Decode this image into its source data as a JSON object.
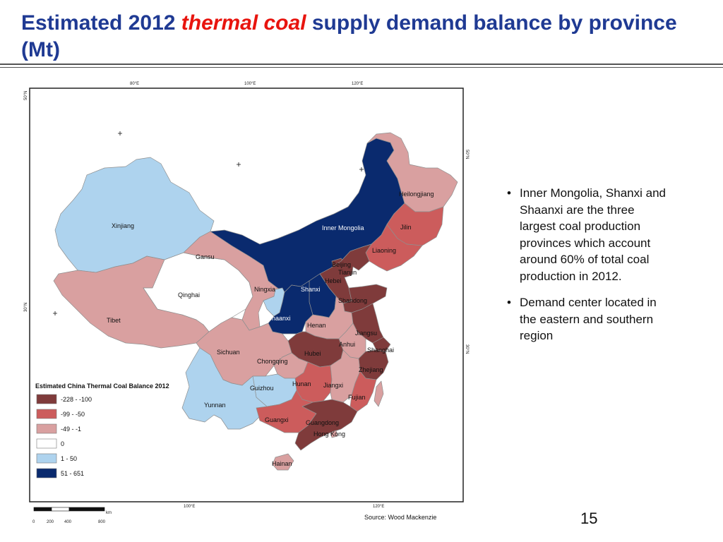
{
  "title": {
    "part1": "Estimated 2012 ",
    "highlight": "thermal coal",
    "part2": " supply demand balance by province (Mt)"
  },
  "colors": {
    "title": "#1f3a93",
    "highlight": "#e8140e",
    "c1": "#7f3b3b",
    "c2": "#cc5c5c",
    "c3": "#d9a0a0",
    "c4": "#ffffff",
    "c5": "#aed3ee",
    "c6": "#0a2a6e"
  },
  "map": {
    "axis_top": [
      "80°E",
      "100°E",
      "120°E"
    ],
    "axis_bottom": [
      "100°E",
      "120°E"
    ],
    "axis_left": [
      "50°N",
      "30°N"
    ],
    "axis_right": [
      "50°N",
      "30°N"
    ],
    "source": "Source: Wood Mackenzie",
    "scale": {
      "unit": "km",
      "ticks": [
        "0",
        "200",
        "400",
        "800"
      ]
    },
    "legend": {
      "title": "Estimated China Thermal Coal Balance 2012",
      "items": [
        {
          "label": "-228 - -100",
          "color": "#7f3b3b"
        },
        {
          "label": "-99 - -50",
          "color": "#cc5c5c"
        },
        {
          "label": "-49 - -1",
          "color": "#d9a0a0"
        },
        {
          "label": "0",
          "color": "#ffffff"
        },
        {
          "label": "1 - 50",
          "color": "#aed3ee"
        },
        {
          "label": "51 - 651",
          "color": "#0a2a6e"
        }
      ]
    },
    "provinces": {
      "xinjiang": "Xinjiang",
      "tibet": "Tibet",
      "qinghai": "Qinghai",
      "gansu": "Gansu",
      "inner_mongolia": "Inner Mongolia",
      "heilongjiang": "Heilongjiang",
      "jilin": "Jilin",
      "liaoning": "Liaoning",
      "beijing": "Beijing",
      "tianjin": "Tianjin",
      "hebei": "Hebei",
      "ningxia": "Ningxia",
      "shanxi": "Shanxi",
      "shaanxi": "Shaanxi",
      "shandong": "Shandong",
      "henan": "Henan",
      "jiangsu": "Jiangsu",
      "anhui": "Anhui",
      "shanghai": "Shanghai",
      "hubei": "Hubei",
      "sichuan": "Sichuan",
      "chongqing": "Chongqing",
      "zhejiang": "Zhejiang",
      "hunan": "Hunan",
      "jiangxi": "Jiangxi",
      "guizhou": "Guizhou",
      "fujian": "Fujian",
      "yunnan": "Yunnan",
      "guangxi": "Guangxi",
      "guangdong": "Guangdong",
      "hong_kong": "Hong Kong",
      "hainan": "Hainan"
    }
  },
  "bullets": [
    "Inner Mongolia, Shanxi and Shaanxi are the three largest coal production provinces which account around 60% of total coal production in 2012.",
    "Demand center located in the eastern and southern region"
  ],
  "page_number": "15"
}
